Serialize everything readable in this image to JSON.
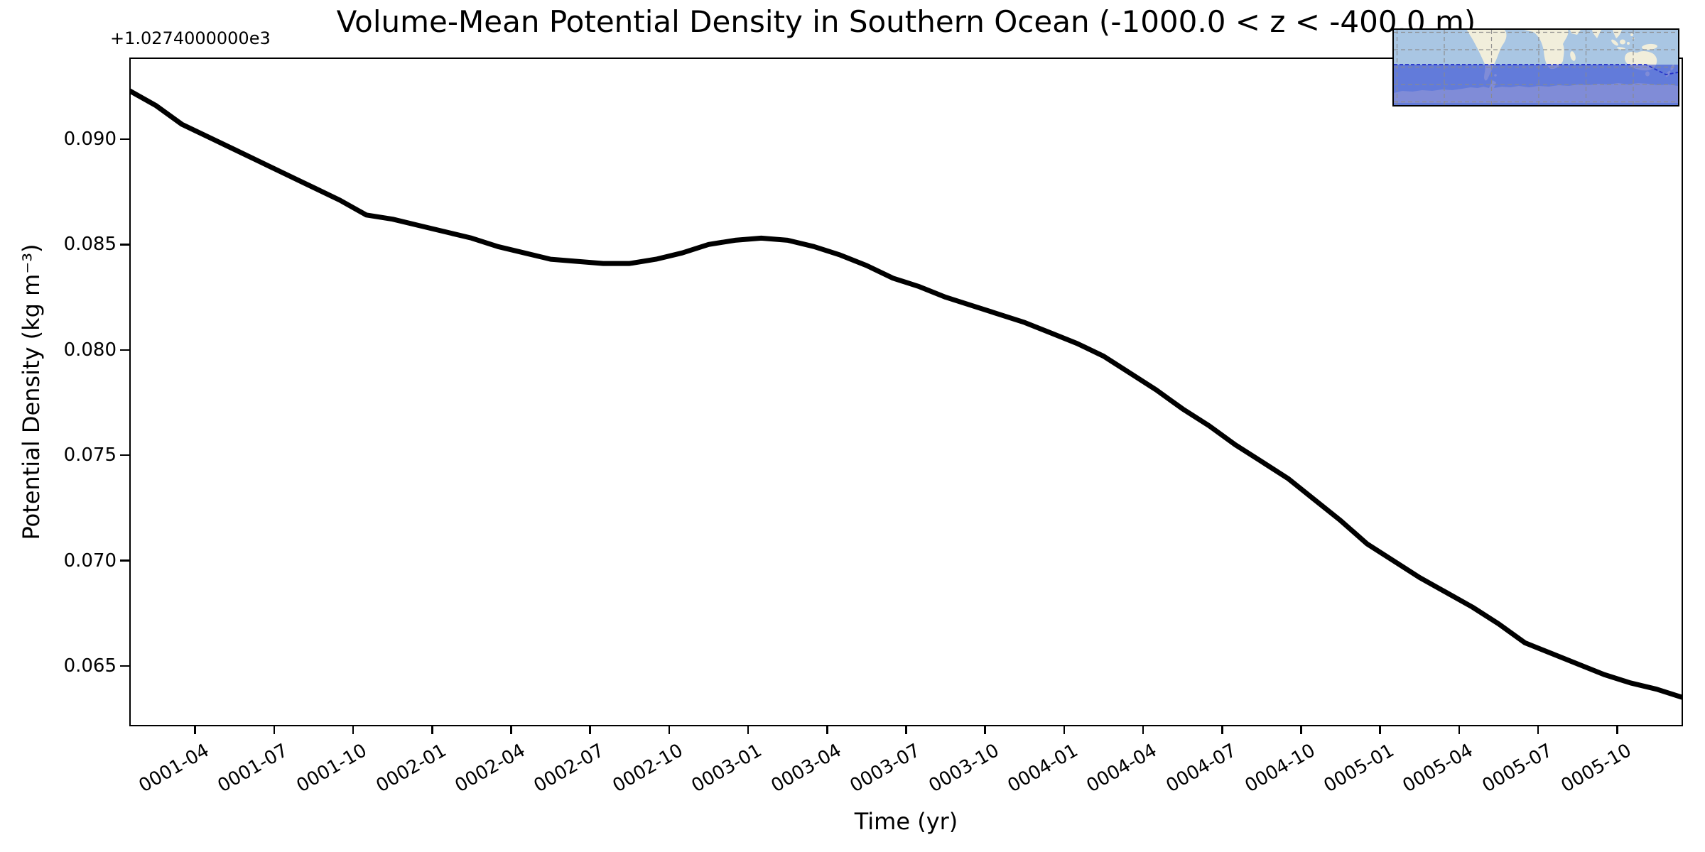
{
  "chart": {
    "title": "Volume-Mean Potential Density in Southern Ocean (-1000.0 < z < -400.0 m)",
    "xlabel": "Time (yr)",
    "ylabel": "Potential Density (kg m⁻³)",
    "y_offset_text": "+1.0274000000e3"
  },
  "chart_data": {
    "type": "line",
    "title": "Volume-Mean Potential Density in Southern Ocean (-1000.0 < z < -400.0 m)",
    "xlabel": "Time (yr)",
    "ylabel": "Potential Density (kg m⁻³)",
    "y_axis_offset": "+1.0274000000e3",
    "y_base_value": 1027.4,
    "legend": "none",
    "grid": false,
    "line_color": "#000000",
    "x": [
      "0001-01",
      "0001-02",
      "0001-03",
      "0001-04",
      "0001-05",
      "0001-06",
      "0001-07",
      "0001-08",
      "0001-09",
      "0001-10",
      "0001-11",
      "0001-12",
      "0002-01",
      "0002-02",
      "0002-03",
      "0002-04",
      "0002-05",
      "0002-06",
      "0002-07",
      "0002-08",
      "0002-09",
      "0002-10",
      "0002-11",
      "0002-12",
      "0003-01",
      "0003-02",
      "0003-03",
      "0003-04",
      "0003-05",
      "0003-06",
      "0003-07",
      "0003-08",
      "0003-09",
      "0003-10",
      "0003-11",
      "0003-12",
      "0004-01",
      "0004-02",
      "0004-03",
      "0004-04",
      "0004-05",
      "0004-06",
      "0004-07",
      "0004-08",
      "0004-09",
      "0004-10",
      "0004-11",
      "0004-12",
      "0005-01",
      "0005-02",
      "0005-03",
      "0005-04",
      "0005-05",
      "0005-06",
      "0005-07",
      "0005-08",
      "0005-09",
      "0005-10",
      "0005-11",
      "0005-12"
    ],
    "values": [
      0.0923,
      0.0916,
      0.0907,
      0.0901,
      0.0895,
      0.0889,
      0.0883,
      0.0877,
      0.0871,
      0.0864,
      0.0862,
      0.0859,
      0.0856,
      0.0853,
      0.0849,
      0.0846,
      0.0843,
      0.0842,
      0.0841,
      0.0841,
      0.0843,
      0.0846,
      0.085,
      0.0852,
      0.0853,
      0.0852,
      0.0849,
      0.0845,
      0.084,
      0.0834,
      0.083,
      0.0825,
      0.0821,
      0.0817,
      0.0813,
      0.0808,
      0.0803,
      0.0797,
      0.0789,
      0.0781,
      0.0772,
      0.0764,
      0.0755,
      0.0747,
      0.0739,
      0.0729,
      0.0719,
      0.0708,
      0.07,
      0.0692,
      0.0685,
      0.0678,
      0.067,
      0.0661,
      0.0656,
      0.0651,
      0.0646,
      0.0642,
      0.0639,
      0.0635
    ],
    "ylim": [
      0.06214,
      0.09387
    ],
    "xlim_months": [
      0,
      59
    ],
    "y_ticks": [
      "0.090",
      "0.085",
      "0.080",
      "0.075",
      "0.070",
      "0.065"
    ],
    "x_ticks": [
      "0001-04",
      "0001-07",
      "0001-10",
      "0002-01",
      "0002-04",
      "0002-07",
      "0002-10",
      "0003-01",
      "0003-04",
      "0003-07",
      "0003-10",
      "0004-01",
      "0004-04",
      "0004-07",
      "0004-10",
      "0005-01",
      "0005-04",
      "0005-07",
      "0005-10"
    ]
  },
  "inset_map": {
    "description": "world-map-inset-highlighting-southern-ocean",
    "colors": {
      "ocean": "#a9c6e3",
      "land": "#f1eedb",
      "overlay": "#2f45d4",
      "boundary": "#2431c8",
      "grid": "#8a8a8a",
      "line": "#000000"
    }
  }
}
